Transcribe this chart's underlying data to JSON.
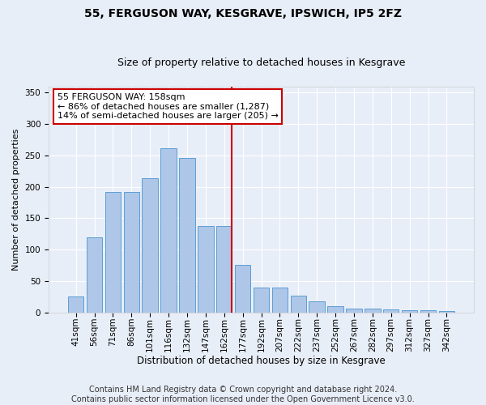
{
  "title1": "55, FERGUSON WAY, KESGRAVE, IPSWICH, IP5 2FZ",
  "title2": "Size of property relative to detached houses in Kesgrave",
  "xlabel": "Distribution of detached houses by size in Kesgrave",
  "ylabel": "Number of detached properties",
  "categories": [
    "41sqm",
    "56sqm",
    "71sqm",
    "86sqm",
    "101sqm",
    "116sqm",
    "132sqm",
    "147sqm",
    "162sqm",
    "177sqm",
    "192sqm",
    "207sqm",
    "222sqm",
    "237sqm",
    "252sqm",
    "267sqm",
    "282sqm",
    "297sqm",
    "312sqm",
    "327sqm",
    "342sqm"
  ],
  "values": [
    25,
    120,
    192,
    192,
    213,
    261,
    246,
    137,
    137,
    75,
    40,
    40,
    26,
    17,
    10,
    6,
    6,
    4,
    3,
    3,
    2
  ],
  "bar_color": "#aec6e8",
  "bar_edge_color": "#5a9fd4",
  "vline_index": 8,
  "vline_color": "#cc0000",
  "annotation_title": "55 FERGUSON WAY: 158sqm",
  "annotation_line1": "← 86% of detached houses are smaller (1,287)",
  "annotation_line2": "14% of semi-detached houses are larger (205) →",
  "annotation_box_color": "#ffffff",
  "annotation_box_edgecolor": "#cc0000",
  "ylim": [
    0,
    360
  ],
  "yticks": [
    0,
    50,
    100,
    150,
    200,
    250,
    300,
    350
  ],
  "footer1": "Contains HM Land Registry data © Crown copyright and database right 2024.",
  "footer2": "Contains public sector information licensed under the Open Government Licence v3.0.",
  "bg_color": "#e8eef8",
  "title1_fontsize": 10,
  "title2_fontsize": 9,
  "xlabel_fontsize": 8.5,
  "ylabel_fontsize": 8,
  "tick_fontsize": 7.5,
  "footer_fontsize": 7,
  "annotation_fontsize": 8
}
